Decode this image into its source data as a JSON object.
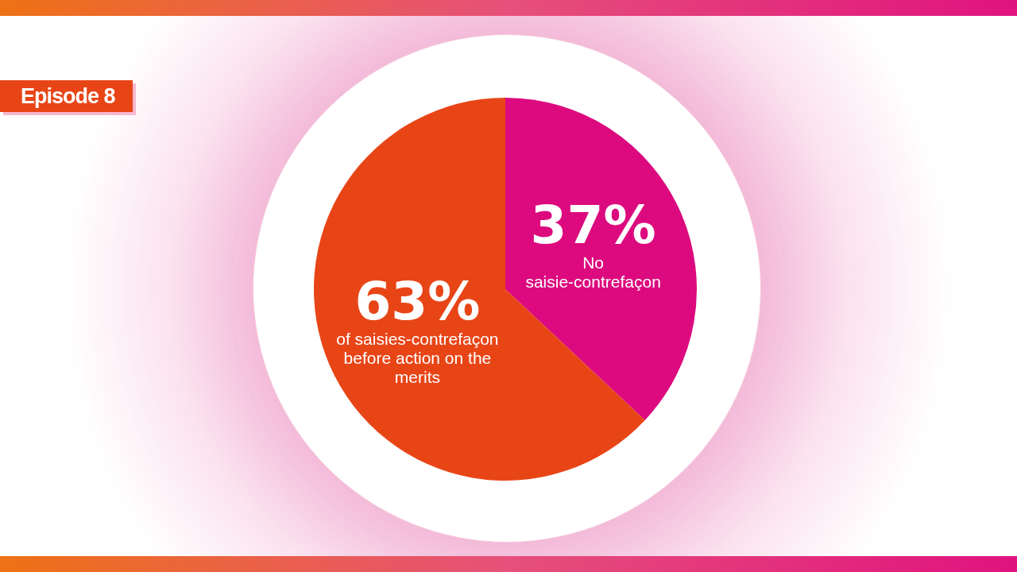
{
  "chart_data": {
    "type": "pie",
    "title": "Episode 8",
    "categories": [
      "No saisie-contrefaçon",
      "of saisies-contrefaçon before action on the merits"
    ],
    "values": [
      37,
      63
    ],
    "colors": [
      "#dc0a7e",
      "#e84517"
    ],
    "value_labels": [
      "37%",
      "63%"
    ],
    "legend": false
  }
}
